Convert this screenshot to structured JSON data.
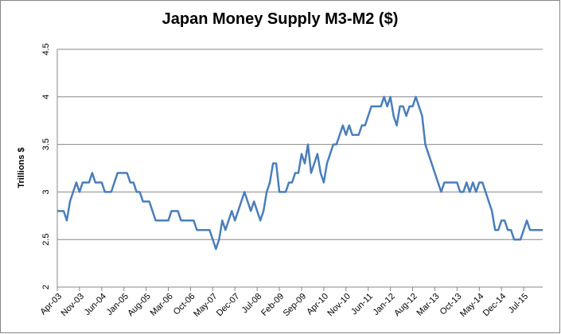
{
  "chart_data": {
    "type": "line",
    "title": "Japan Money Supply M3-M2 ($)",
    "y_label": "Trillions $",
    "categories": [
      "Apr-03",
      null,
      null,
      null,
      null,
      null,
      null,
      "Nov-03",
      null,
      null,
      null,
      null,
      null,
      null,
      "Jun-04",
      null,
      null,
      null,
      null,
      null,
      null,
      "Jan-05",
      null,
      null,
      null,
      null,
      null,
      null,
      "Aug-05",
      null,
      null,
      null,
      null,
      null,
      null,
      "Mar-06",
      null,
      null,
      null,
      null,
      null,
      null,
      "Oct-06",
      null,
      null,
      null,
      null,
      null,
      null,
      "May-07",
      null,
      null,
      null,
      null,
      null,
      null,
      "Dec-07",
      null,
      null,
      null,
      null,
      null,
      null,
      "Jul-08",
      null,
      null,
      null,
      null,
      null,
      null,
      "Feb-09",
      null,
      null,
      null,
      null,
      null,
      null,
      "Sep-09",
      null,
      null,
      null,
      null,
      null,
      null,
      "Apr-10",
      null,
      null,
      null,
      null,
      null,
      null,
      "Nov-10",
      null,
      null,
      null,
      null,
      null,
      null,
      "Jun-11",
      null,
      null,
      null,
      null,
      null,
      null,
      "Jan-12",
      null,
      null,
      null,
      null,
      null,
      null,
      "Aug-12",
      null,
      null,
      null,
      null,
      null,
      null,
      "Mar-13",
      null,
      null,
      null,
      null,
      null,
      null,
      "Oct-13",
      null,
      null,
      null,
      null,
      null,
      null,
      "May-14",
      null,
      null,
      null,
      null,
      null,
      null,
      "Dec-14",
      null,
      null,
      null,
      null,
      null,
      null,
      "Jul-15",
      null,
      null,
      null,
      null,
      null,
      null
    ],
    "series": [
      {
        "name": "Japan Money Supply M3-M2",
        "color": "#4a7ebb",
        "values": [
          2.8,
          2.8,
          2.8,
          2.7,
          2.9,
          3.0,
          3.1,
          3.0,
          3.1,
          3.1,
          3.1,
          3.2,
          3.1,
          3.1,
          3.1,
          3.0,
          3.0,
          3.0,
          3.1,
          3.2,
          3.2,
          3.2,
          3.2,
          3.1,
          3.1,
          3.0,
          3.0,
          2.9,
          2.9,
          2.9,
          2.8,
          2.7,
          2.7,
          2.7,
          2.7,
          2.7,
          2.8,
          2.8,
          2.8,
          2.7,
          2.7,
          2.7,
          2.7,
          2.7,
          2.6,
          2.6,
          2.6,
          2.6,
          2.6,
          2.5,
          2.4,
          2.5,
          2.7,
          2.6,
          2.7,
          2.8,
          2.7,
          2.8,
          2.9,
          3.0,
          2.9,
          2.8,
          2.9,
          2.8,
          2.7,
          2.8,
          3.0,
          3.1,
          3.3,
          3.3,
          3.0,
          3.0,
          3.0,
          3.1,
          3.1,
          3.2,
          3.2,
          3.4,
          3.3,
          3.5,
          3.2,
          3.3,
          3.4,
          3.2,
          3.1,
          3.3,
          3.4,
          3.5,
          3.5,
          3.6,
          3.7,
          3.6,
          3.7,
          3.6,
          3.6,
          3.6,
          3.7,
          3.7,
          3.8,
          3.9,
          3.9,
          3.9,
          3.9,
          4.0,
          3.9,
          4.0,
          3.8,
          3.7,
          3.9,
          3.9,
          3.8,
          3.9,
          3.9,
          4.0,
          3.9,
          3.8,
          3.5,
          3.4,
          3.3,
          3.2,
          3.1,
          3.0,
          3.1,
          3.1,
          3.1,
          3.1,
          3.1,
          3.0,
          3.0,
          3.1,
          3.0,
          3.1,
          3.0,
          3.1,
          3.1,
          3.0,
          2.9,
          2.8,
          2.6,
          2.6,
          2.7,
          2.7,
          2.6,
          2.6,
          2.5,
          2.5,
          2.5,
          2.6,
          2.7,
          2.6,
          2.6,
          2.6,
          2.6,
          2.6
        ]
      }
    ],
    "ylim": [
      2,
      4.5
    ],
    "yticks": [
      2,
      2.5,
      3,
      3.5,
      4,
      4.5
    ],
    "grid": true
  }
}
